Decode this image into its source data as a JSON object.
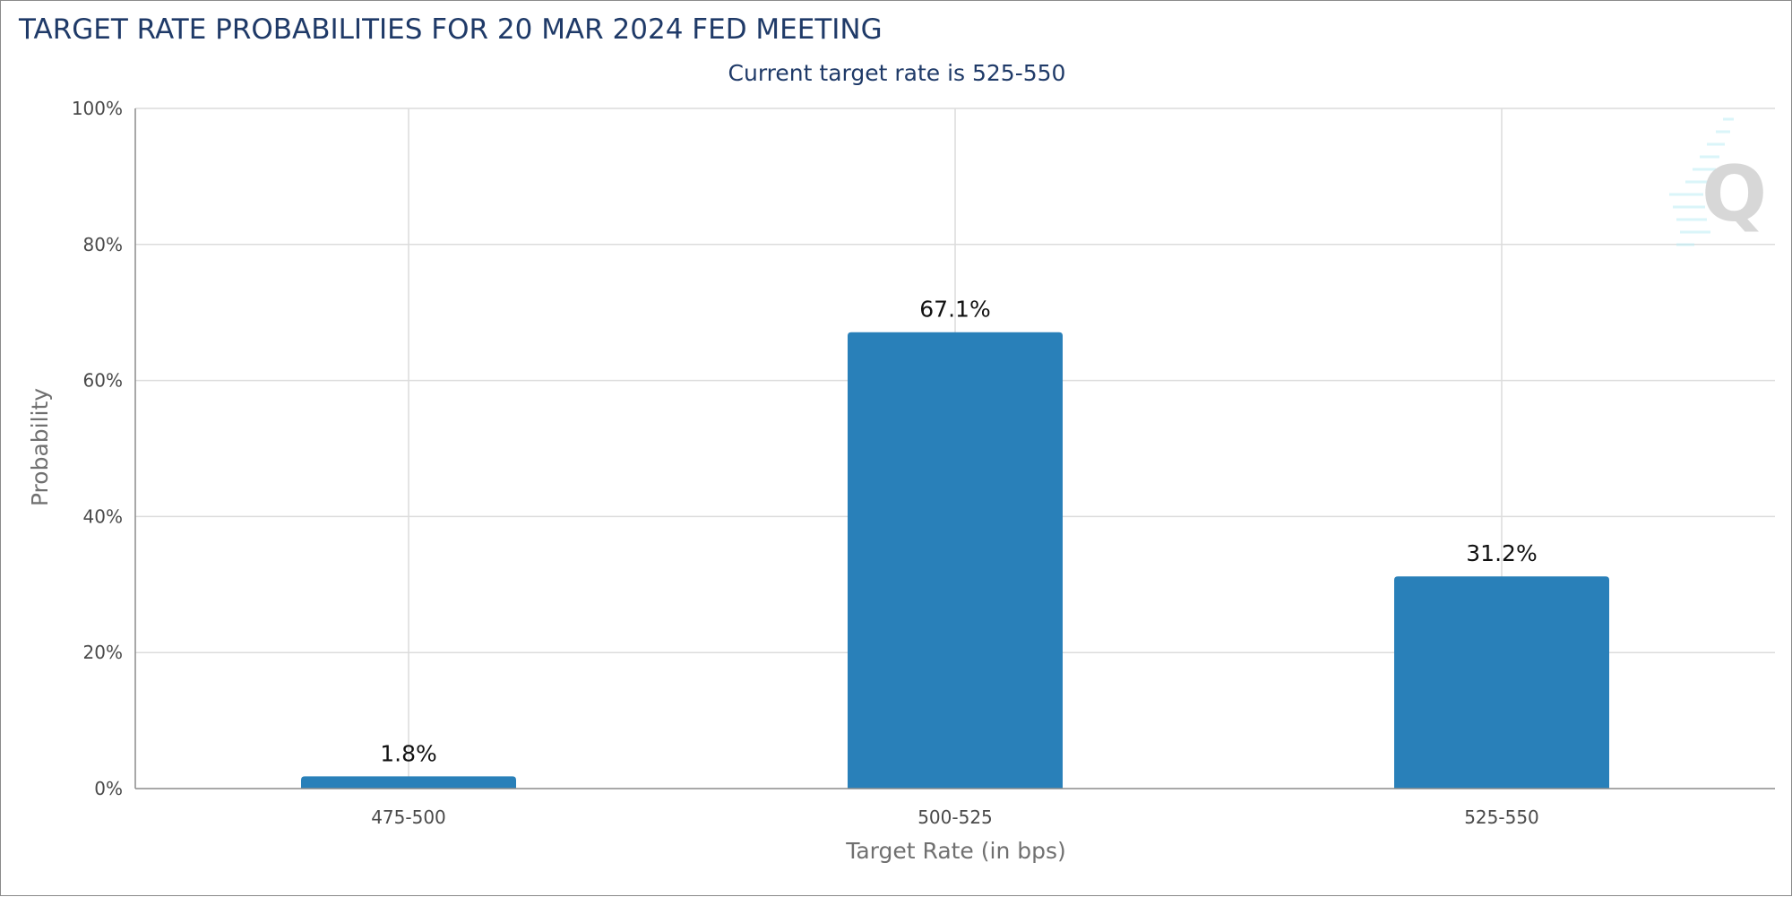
{
  "chart_data": {
    "type": "bar",
    "title": "TARGET RATE PROBABILITIES FOR 20 MAR 2024 FED MEETING",
    "subtitle": "Current target rate is 525-550",
    "xlabel": "Target Rate (in bps)",
    "ylabel": "Probability",
    "categories": [
      "475-500",
      "500-525",
      "525-550"
    ],
    "values": [
      1.8,
      67.1,
      31.2
    ],
    "data_labels": [
      "1.8%",
      "67.1%",
      "31.2%"
    ],
    "ylim": [
      0,
      100
    ],
    "yticks": [
      0,
      20,
      40,
      60,
      80,
      100
    ],
    "ytick_labels": [
      "0%",
      "20%",
      "40%",
      "60%",
      "80%",
      "100%"
    ],
    "grid": true,
    "legend": "none",
    "bar_color": "#2980b9",
    "watermark": "Q"
  }
}
